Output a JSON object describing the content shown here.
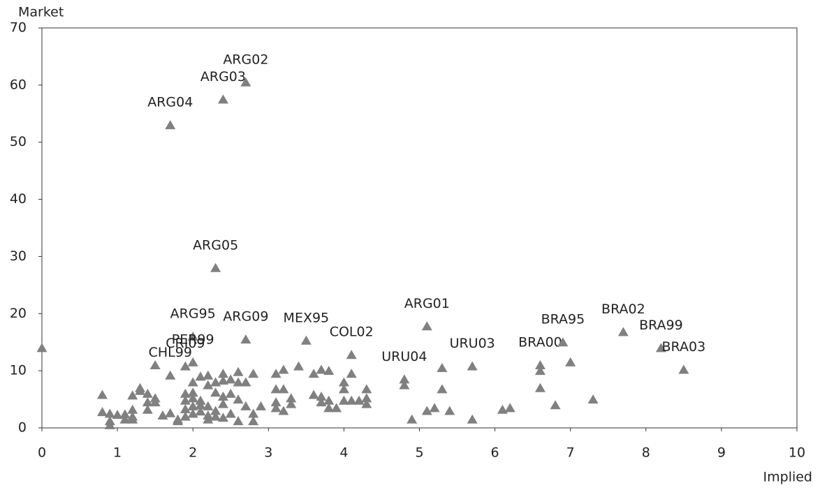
{
  "chart_data": {
    "type": "scatter",
    "x_label": "Implied",
    "y_label": "Market",
    "color": "#808080",
    "xlim": [
      0,
      10
    ],
    "xticks": [
      0,
      1,
      2,
      3,
      4,
      5,
      6,
      7,
      8,
      9,
      10
    ],
    "ylim": [
      0,
      70
    ],
    "yticks": [
      0,
      10,
      20,
      30,
      40,
      50,
      60,
      70
    ],
    "x": [
      2.7,
      2.4,
      1.7,
      2.3,
      2.0,
      2.7,
      3.5,
      5.1,
      4.1,
      4.8,
      5.7,
      6.6,
      6.9,
      7.7,
      8.2,
      8.5,
      2.0,
      1.9,
      1.7,
      0,
      0.8,
      0.8,
      0.9,
      0.9,
      0.9,
      1.0,
      1.1,
      1.1,
      1.2,
      1.2,
      1.2,
      1.2,
      1.3,
      1.3,
      1.4,
      1.4,
      1.4,
      1.5,
      1.5,
      1.5,
      1.6,
      1.7,
      1.8,
      1.8,
      1.9,
      1.9,
      1.9,
      1.9,
      2.0,
      2.0,
      2.0,
      2.0,
      2.0,
      2.1,
      2.1,
      2.1,
      2.1,
      2.2,
      2.2,
      2.2,
      2.2,
      2.2,
      2.3,
      2.3,
      2.3,
      2.3,
      2.4,
      2.4,
      2.4,
      2.4,
      2.4,
      2.5,
      2.5,
      2.5,
      2.6,
      2.6,
      2.6,
      2.6,
      2.7,
      2.7,
      2.8,
      2.8,
      2.8,
      2.9,
      3.1,
      3.1,
      3.1,
      3.1,
      3.2,
      3.2,
      3.2,
      3.3,
      3.3,
      3.4,
      3.6,
      3.6,
      3.7,
      3.7,
      3.7,
      3.8,
      3.8,
      3.8,
      3.9,
      4.0,
      4.0,
      4.0,
      4.1,
      4.1,
      4.2,
      4.3,
      4.3,
      4.3,
      4.8,
      4.9,
      5.1,
      5.2,
      5.3,
      5.3,
      5.4,
      5.7,
      6.1,
      6.2,
      6.6,
      6.6,
      6.8,
      7.0,
      7.3
    ],
    "y": [
      60.5,
      57.5,
      53,
      28,
      16,
      15.5,
      15.3,
      17.8,
      12.8,
      8.5,
      10.8,
      11,
      15,
      16.8,
      14,
      10.2,
      11.5,
      10.8,
      9.2,
      14,
      5.8,
      2.8,
      2.5,
      1.2,
      0.5,
      2.3,
      1.5,
      2.4,
      3.2,
      2.0,
      1.5,
      5.7,
      7.0,
      6.5,
      6.0,
      4.5,
      3.2,
      5.2,
      4.5,
      11,
      2.2,
      2.6,
      1.2,
      1.5,
      2.0,
      3.3,
      4.8,
      6.0,
      2.5,
      3.8,
      5.2,
      6.2,
      8.0,
      9.0,
      4.0,
      4.8,
      2.9,
      1.5,
      2.2,
      3.8,
      7.5,
      9.2,
      6.2,
      8.0,
      3.0,
      2.0,
      9.5,
      5.5,
      4.2,
      1.8,
      8.3,
      8.5,
      6.0,
      2.5,
      9.8,
      5.0,
      1.2,
      8.0,
      8.0,
      3.8,
      9.5,
      2.5,
      1.2,
      3.8,
      9.5,
      6.8,
      4.5,
      3.5,
      10.2,
      6.8,
      3.0,
      5.2,
      4.2,
      10.8,
      9.5,
      5.8,
      10.2,
      5.5,
      4.5,
      10.0,
      4.8,
      3.5,
      3.5,
      8.0,
      6.8,
      4.8,
      9.5,
      4.8,
      4.8,
      6.8,
      5.2,
      4.2,
      7.5,
      1.5,
      3.0,
      3.5,
      10.5,
      6.8,
      3.0,
      1.5,
      3.2,
      3.5,
      10.0,
      7.0,
      4.0,
      11.5,
      5.0
    ],
    "labels": [
      "ARG02",
      "ARG03",
      "ARG04",
      "ARG05",
      "ARG95",
      "ARG09",
      "MEX95",
      "ARG01",
      "COL02",
      "URU04",
      "URU03",
      "BRA00",
      "BRA95",
      "BRA02",
      "BRA99",
      "BRA03",
      "PER99",
      "CRI09",
      "CHL99",
      null,
      null,
      null,
      null,
      null,
      null,
      null,
      null,
      null,
      null,
      null,
      null,
      null,
      null,
      null,
      null,
      null,
      null,
      null,
      null,
      null,
      null,
      null,
      null,
      null,
      null,
      null,
      null,
      null,
      null,
      null,
      null,
      null,
      null,
      null,
      null,
      null,
      null,
      null,
      null,
      null,
      null,
      null,
      null,
      null,
      null,
      null,
      null,
      null,
      null,
      null,
      null,
      null,
      null,
      null,
      null,
      null,
      null,
      null,
      null,
      null,
      null,
      null,
      null,
      null,
      null,
      null,
      null,
      null,
      null,
      null,
      null,
      null,
      null,
      null,
      null,
      null,
      null,
      null,
      null,
      null,
      null,
      null,
      null,
      null,
      null,
      null,
      null,
      null,
      null,
      null,
      null,
      null,
      null,
      null,
      null,
      null,
      null,
      null,
      null,
      null,
      null,
      null,
      null,
      null,
      null,
      null,
      null,
      null,
      null,
      null,
      null
    ]
  }
}
